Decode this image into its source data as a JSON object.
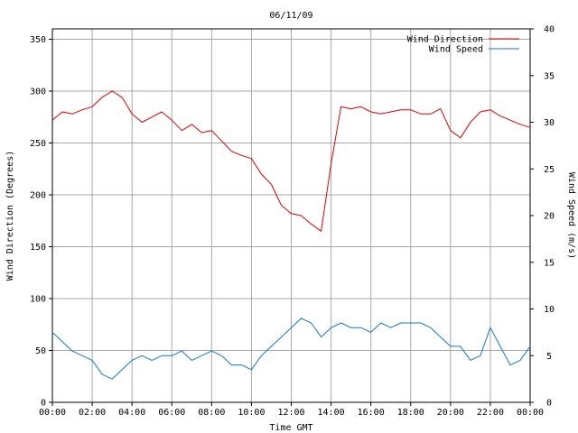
{
  "chart_data": {
    "type": "line",
    "title": "06/11/09",
    "xlabel": "Time GMT",
    "ylabel_left": "Wind Direction (Degrees)",
    "ylabel_right": "Wind Speed (m/s)",
    "x_ticks": [
      "00:00",
      "02:00",
      "04:00",
      "06:00",
      "08:00",
      "10:00",
      "12:00",
      "14:00",
      "16:00",
      "18:00",
      "20:00",
      "22:00",
      "00:00"
    ],
    "y_left": {
      "min": 0,
      "max": 360,
      "ticks": [
        0,
        50,
        100,
        150,
        200,
        250,
        300,
        350
      ]
    },
    "y_right": {
      "min": 0,
      "max": 40,
      "ticks": [
        0,
        5,
        10,
        15,
        20,
        25,
        30,
        35,
        40
      ]
    },
    "grid": true,
    "legend_position": "top-right",
    "x_hours": [
      0,
      0.5,
      1,
      1.5,
      2,
      2.5,
      3,
      3.5,
      4,
      4.5,
      5,
      5.5,
      6,
      6.5,
      7,
      7.5,
      8,
      8.5,
      9,
      9.5,
      10,
      10.5,
      11,
      11.5,
      12,
      12.5,
      13,
      13.5,
      14,
      14.5,
      15,
      15.5,
      16,
      16.5,
      17,
      17.5,
      18,
      18.5,
      19,
      19.5,
      20,
      20.5,
      21,
      21.5,
      22,
      22.5,
      23,
      23.5,
      24
    ],
    "series": [
      {
        "name": "Wind Direction",
        "axis": "left",
        "color": "#dd0000",
        "values": [
          272,
          280,
          278,
          282,
          285,
          294,
          300,
          294,
          278,
          270,
          275,
          280,
          272,
          262,
          268,
          260,
          262,
          252,
          242,
          238,
          235,
          220,
          210,
          190,
          182,
          180,
          172,
          165,
          230,
          285,
          283,
          285,
          280,
          278,
          280,
          282,
          282,
          278,
          278,
          283,
          262,
          255,
          270,
          280,
          282,
          276,
          272,
          268,
          265
        ]
      },
      {
        "name": "Wind Speed",
        "axis": "right",
        "color": "#1177cc",
        "values": [
          7.5,
          6.5,
          5.5,
          5,
          4.5,
          3,
          2.5,
          3.5,
          4.5,
          5,
          4.5,
          5,
          5,
          5.5,
          4.5,
          5,
          5.5,
          5,
          4,
          4,
          3.5,
          5,
          6,
          7,
          8,
          9,
          8.5,
          7,
          8,
          8.5,
          8,
          8,
          7.5,
          8.5,
          8,
          8.5,
          8.5,
          8.5,
          8,
          7,
          6,
          6,
          4.5,
          5,
          8,
          6,
          4,
          4.5,
          6
        ]
      }
    ]
  }
}
